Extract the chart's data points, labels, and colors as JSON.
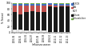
{
  "seasons": [
    "2003-04",
    "2004-05",
    "2005-06",
    "2006-07",
    "2007-08",
    "2008-09",
    "2009-10",
    "2010-11",
    "2011-12",
    "2012-13"
  ],
  "ridt": [
    10,
    10,
    8,
    8,
    8,
    8,
    2,
    2,
    2,
    2
  ],
  "dfa": [
    22,
    28,
    22,
    18,
    20,
    20,
    4,
    6,
    3,
    3
  ],
  "rt_pcr": [
    5,
    5,
    5,
    5,
    6,
    6,
    5,
    5,
    5,
    5
  ],
  "culture": [
    58,
    52,
    60,
    65,
    62,
    62,
    87,
    83,
    87,
    87
  ],
  "other": [
    5,
    5,
    5,
    4,
    4,
    4,
    2,
    4,
    3,
    3
  ],
  "colors": {
    "rt_pcr": "#4472c4",
    "dfa": "#c0504d",
    "ridt": "#f2f2f2",
    "culture": "#1a1a1a",
    "other": "#70ad47"
  },
  "ridt_edge": "#999999",
  "ylabel": "% Tested",
  "xlabel": "Influenza season",
  "ylim": [
    0,
    100
  ],
  "yticks": [
    0,
    20,
    40,
    60,
    80,
    100
  ],
  "legend_entries": [
    "RT-PCR",
    "DFA",
    "RIDT",
    "Culture",
    "Culture/other"
  ]
}
